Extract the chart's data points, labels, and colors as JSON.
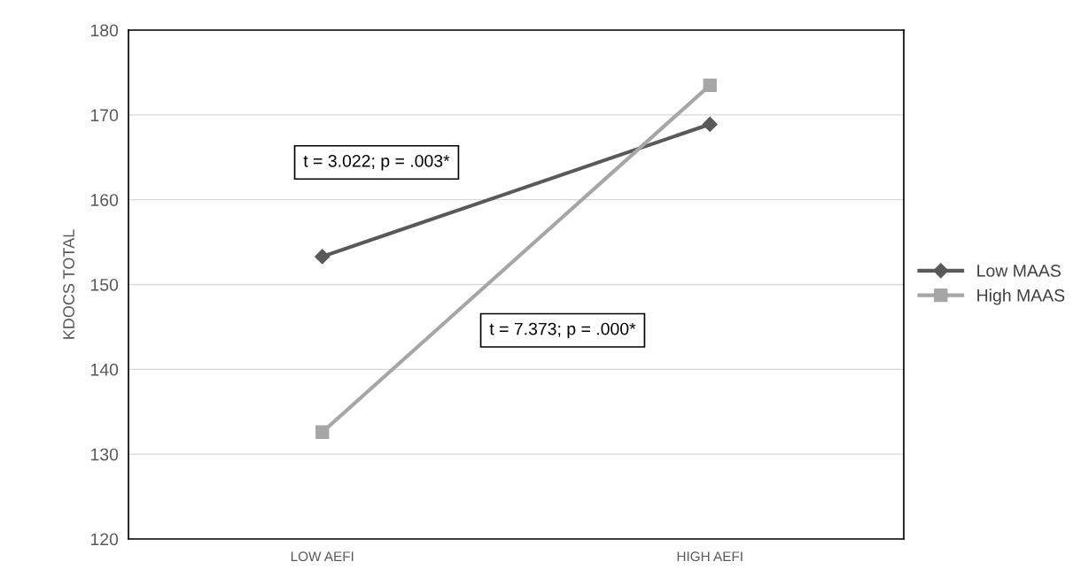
{
  "chart_data": {
    "type": "line",
    "ylabel": "KDOCS TOTAL",
    "categories": [
      "LOW AEFI",
      "HIGH AEFI"
    ],
    "series": [
      {
        "name": "Low MAAS",
        "color": "#595959",
        "marker": "diamond",
        "values": [
          153.3,
          168.9
        ]
      },
      {
        "name": "High MAAS",
        "color": "#a6a6a6",
        "marker": "square",
        "values": [
          132.6,
          173.5
        ]
      }
    ],
    "ylim": [
      120,
      180
    ],
    "yticks": [
      120,
      130,
      140,
      150,
      160,
      170,
      180
    ],
    "grid": "y",
    "legend": "right",
    "annotations": [
      "t = 3.022; p = .003*",
      "t = 7.373; p = .000*"
    ]
  }
}
